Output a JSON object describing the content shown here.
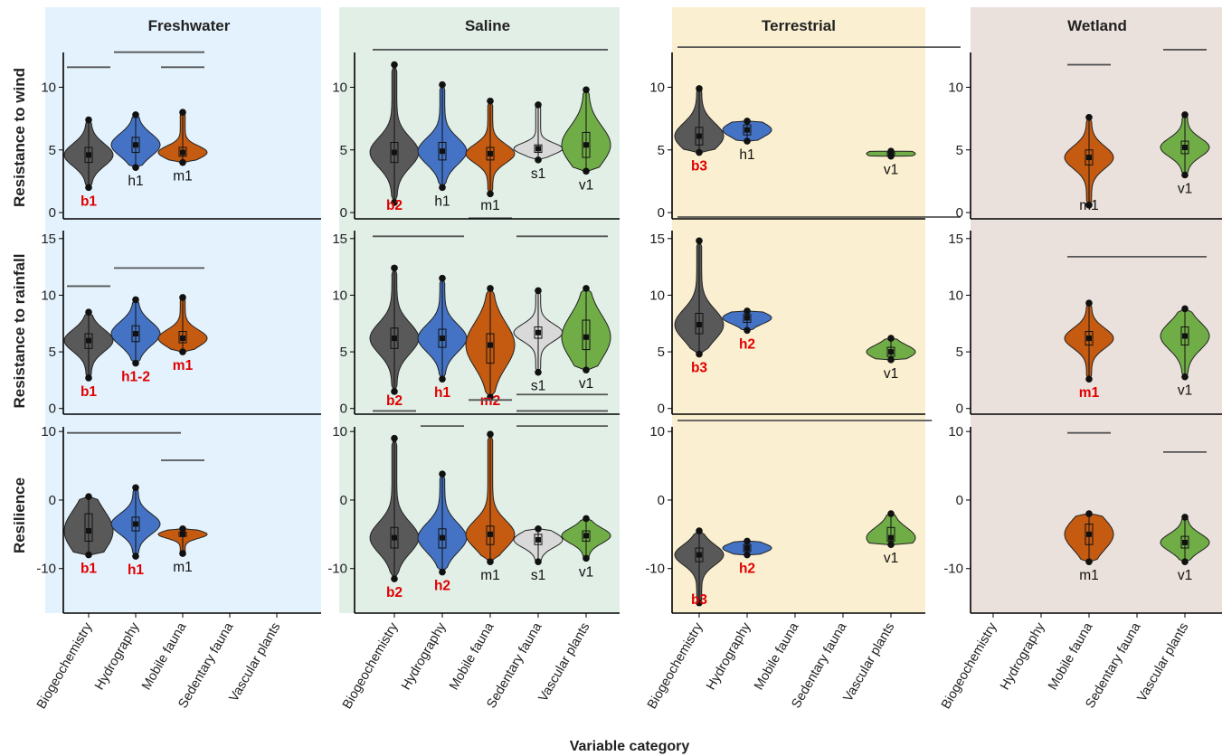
{
  "chart_data": {
    "type": "violin",
    "xlabel": "Variable category",
    "facets": [
      "Freshwater",
      "Saline",
      "Terrestrial",
      "Wetland"
    ],
    "rows": [
      "Resistance to wind",
      "Resistance to rainfall",
      "Resilience"
    ],
    "categories": [
      "Biogeochemistry",
      "Hydrography",
      "Mobile fauna",
      "Sedentary fauna",
      "Vascular plants"
    ],
    "category_colors": {
      "Biogeochemistry": "#595959",
      "Hydrography": "#4472c4",
      "Mobile fauna": "#c55a11",
      "Sedentary fauna": "#d9d9d9",
      "Vascular plants": "#70ad47"
    },
    "facet_backgrounds": {
      "Freshwater": "#e3f2fc",
      "Saline": "#e1efe7",
      "Terrestrial": "#fbefd1",
      "Wetland": "#ebe1dc"
    },
    "y_ranges": {
      "Resistance to wind": [
        -0.5,
        13.5
      ],
      "Resistance to rainfall": [
        -0.5,
        16.5
      ],
      "Resilience": [
        -16.5,
        12
      ]
    },
    "y_ticks": {
      "Resistance to wind": [
        0,
        5,
        10
      ],
      "Resistance to rainfall": [
        0,
        5,
        10,
        15
      ],
      "Resilience": [
        -10,
        0,
        10
      ]
    },
    "label_colors": {
      "significant": "#e00000",
      "normal": "#111111"
    },
    "panels": [
      {
        "facet": "Freshwater",
        "row": "Resistance to wind",
        "groups": [
          {
            "category": "Biogeochemistry",
            "min": 2.0,
            "q1": 4.0,
            "median": 4.6,
            "q3": 5.2,
            "max": 7.4,
            "label": "b1",
            "significant": true
          },
          {
            "category": "Hydrography",
            "min": 3.6,
            "q1": 4.8,
            "median": 5.4,
            "q3": 6.0,
            "max": 7.8,
            "label": "h1",
            "significant": false
          },
          {
            "category": "Mobile fauna",
            "min": 4.0,
            "q1": 4.5,
            "median": 4.8,
            "q3": 5.2,
            "max": 8.0,
            "label": "m1",
            "significant": false
          }
        ],
        "sig_lines": [
          {
            "y": 11.6,
            "from": 0,
            "to": 0
          },
          {
            "y": 12.8,
            "from": 1,
            "to": 2
          },
          {
            "y": 11.6,
            "from": 2,
            "to": 2
          }
        ]
      },
      {
        "facet": "Saline",
        "row": "Resistance to wind",
        "groups": [
          {
            "category": "Biogeochemistry",
            "min": 0.8,
            "q1": 4.0,
            "median": 4.8,
            "q3": 5.6,
            "max": 11.8,
            "label": "b2",
            "significant": true
          },
          {
            "category": "Hydrography",
            "min": 2.0,
            "q1": 4.2,
            "median": 4.9,
            "q3": 5.6,
            "max": 10.2,
            "label": "h1",
            "significant": false
          },
          {
            "category": "Mobile fauna",
            "min": 1.5,
            "q1": 4.2,
            "median": 4.7,
            "q3": 5.2,
            "max": 8.9,
            "label": "m1",
            "significant": false
          },
          {
            "category": "Sedentary fauna",
            "min": 4.2,
            "q1": 4.8,
            "median": 5.1,
            "q3": 5.4,
            "max": 8.6,
            "label": "s1",
            "significant": false
          },
          {
            "category": "Vascular plants",
            "min": 3.3,
            "q1": 4.4,
            "median": 5.4,
            "q3": 6.4,
            "max": 9.8,
            "label": "v1",
            "significant": false
          }
        ],
        "sig_lines": [
          {
            "y": 13.0,
            "from": 0,
            "to": 4
          }
        ]
      },
      {
        "facet": "Terrestrial",
        "row": "Resistance to wind",
        "groups": [
          {
            "category": "Biogeochemistry",
            "min": 4.8,
            "q1": 5.4,
            "median": 6.1,
            "q3": 6.8,
            "max": 9.9,
            "label": "b3",
            "significant": true
          },
          {
            "category": "Hydrography",
            "min": 5.7,
            "q1": 6.2,
            "median": 6.6,
            "q3": 7.0,
            "max": 7.3,
            "label": "h1",
            "significant": false
          },
          {
            "category": "Vascular plants",
            "min": 4.5,
            "q1": 4.6,
            "median": 4.7,
            "q3": 4.8,
            "max": 4.9,
            "label": "v1",
            "significant": false
          }
        ],
        "sig_lines": [
          {
            "y": 13.2,
            "from": 0,
            "to": 5
          }
        ]
      },
      {
        "facet": "Wetland",
        "row": "Resistance to wind",
        "groups": [
          {
            "category": "Mobile fauna",
            "min": 0.6,
            "q1": 3.8,
            "median": 4.4,
            "q3": 5.0,
            "max": 7.6,
            "label": "m1",
            "significant": false
          },
          {
            "category": "Vascular plants",
            "min": 3.0,
            "q1": 4.7,
            "median": 5.2,
            "q3": 5.7,
            "max": 7.8,
            "label": "v1",
            "significant": false
          }
        ],
        "sig_lines": [
          {
            "y": 11.8,
            "from": 2,
            "to": 2
          },
          {
            "y": 13.0,
            "from": 4,
            "to": 4
          }
        ]
      },
      {
        "facet": "Freshwater",
        "row": "Resistance to rainfall",
        "groups": [
          {
            "category": "Biogeochemistry",
            "min": 2.7,
            "q1": 5.3,
            "median": 6.0,
            "q3": 6.6,
            "max": 8.5,
            "label": "b1",
            "significant": true
          },
          {
            "category": "Hydrography",
            "min": 4.0,
            "q1": 5.9,
            "median": 6.6,
            "q3": 7.3,
            "max": 9.6,
            "label": "h1-2",
            "significant": true
          },
          {
            "category": "Mobile fauna",
            "min": 5.0,
            "q1": 5.8,
            "median": 6.2,
            "q3": 6.8,
            "max": 9.8,
            "label": "m1",
            "significant": true
          }
        ],
        "sig_lines": [
          {
            "y": 10.8,
            "from": 0,
            "to": 0
          },
          {
            "y": 12.4,
            "from": 1,
            "to": 2
          }
        ]
      },
      {
        "facet": "Saline",
        "row": "Resistance to rainfall",
        "groups": [
          {
            "category": "Biogeochemistry",
            "min": 1.5,
            "q1": 5.3,
            "median": 6.2,
            "q3": 7.1,
            "max": 12.4,
            "label": "b2",
            "significant": true
          },
          {
            "category": "Hydrography",
            "min": 2.6,
            "q1": 5.4,
            "median": 6.2,
            "q3": 7.0,
            "max": 11.5,
            "label": "h1",
            "significant": true
          },
          {
            "category": "Mobile fauna",
            "min": 1.0,
            "q1": 4.0,
            "median": 5.6,
            "q3": 6.6,
            "max": 10.6,
            "label": "m2",
            "significant": true
          },
          {
            "category": "Sedentary fauna",
            "min": 3.2,
            "q1": 6.2,
            "median": 6.7,
            "q3": 7.2,
            "max": 10.4,
            "label": "s1",
            "significant": false
          },
          {
            "category": "Vascular plants",
            "min": 3.4,
            "q1": 5.2,
            "median": 6.3,
            "q3": 7.8,
            "max": 10.6,
            "label": "v1",
            "significant": false
          }
        ],
        "sig_lines": [
          {
            "y": 15.2,
            "from": 0,
            "to": 1
          },
          {
            "y": 16.8,
            "from": 2,
            "to": 2
          },
          {
            "y": 15.2,
            "from": 3,
            "to": 4
          }
        ]
      },
      {
        "facet": "Terrestrial",
        "row": "Resistance to rainfall",
        "groups": [
          {
            "category": "Biogeochemistry",
            "min": 4.8,
            "q1": 6.6,
            "median": 7.4,
            "q3": 8.4,
            "max": 14.8,
            "label": "b3",
            "significant": true
          },
          {
            "category": "Hydrography",
            "min": 6.9,
            "q1": 7.6,
            "median": 8.0,
            "q3": 8.3,
            "max": 8.6,
            "label": "h2",
            "significant": true
          },
          {
            "category": "Vascular plants",
            "min": 4.3,
            "q1": 4.6,
            "median": 5.0,
            "q3": 5.4,
            "max": 6.2,
            "label": "v1",
            "significant": false
          }
        ],
        "sig_lines": [
          {
            "y": 16.9,
            "from": 0,
            "to": 5
          }
        ]
      },
      {
        "facet": "Wetland",
        "row": "Resistance to rainfall",
        "groups": [
          {
            "category": "Mobile fauna",
            "min": 2.6,
            "q1": 5.6,
            "median": 6.2,
            "q3": 6.8,
            "max": 9.3,
            "label": "m1",
            "significant": true
          },
          {
            "category": "Vascular plants",
            "min": 2.8,
            "q1": 5.6,
            "median": 6.4,
            "q3": 7.2,
            "max": 8.8,
            "label": "v1",
            "significant": false
          }
        ],
        "sig_lines": [
          {
            "y": 13.4,
            "from": 2,
            "to": 4
          }
        ]
      },
      {
        "facet": "Freshwater",
        "row": "Resilience",
        "groups": [
          {
            "category": "Biogeochemistry",
            "min": -8.0,
            "q1": -6.0,
            "median": -4.5,
            "q3": -2.0,
            "max": 0.5,
            "label": "b1",
            "significant": true
          },
          {
            "category": "Hydrography",
            "min": -8.2,
            "q1": -4.5,
            "median": -3.5,
            "q3": -2.5,
            "max": 1.8,
            "label": "h1",
            "significant": true
          },
          {
            "category": "Mobile fauna",
            "min": -7.8,
            "q1": -5.3,
            "median": -5.0,
            "q3": -4.7,
            "max": -4.2,
            "label": "m1",
            "significant": false
          }
        ],
        "sig_lines": [
          {
            "y": 9.8,
            "from": 0,
            "to": 1.5
          },
          {
            "y": 5.8,
            "from": 2,
            "to": 2
          }
        ]
      },
      {
        "facet": "Saline",
        "row": "Resilience",
        "groups": [
          {
            "category": "Biogeochemistry",
            "min": -11.5,
            "q1": -7.0,
            "median": -5.5,
            "q3": -4.0,
            "max": 9.0,
            "label": "b2",
            "significant": true
          },
          {
            "category": "Hydrography",
            "min": -10.5,
            "q1": -7.0,
            "median": -5.5,
            "q3": -4.2,
            "max": 3.8,
            "label": "h2",
            "significant": true
          },
          {
            "category": "Mobile fauna",
            "min": -9.0,
            "q1": -6.5,
            "median": -5.0,
            "q3": -3.8,
            "max": 9.6,
            "label": "m1",
            "significant": false
          },
          {
            "category": "Sedentary fauna",
            "min": -9.0,
            "q1": -6.5,
            "median": -5.8,
            "q3": -5.0,
            "max": -4.2,
            "label": "s1",
            "significant": false
          },
          {
            "category": "Vascular plants",
            "min": -8.5,
            "q1": -6.0,
            "median": -5.2,
            "q3": -4.5,
            "max": -2.7,
            "label": "v1",
            "significant": false
          }
        ],
        "sig_lines": [
          {
            "y": 13.0,
            "from": 0,
            "to": 0
          },
          {
            "y": 10.8,
            "from": 1,
            "to": 1
          },
          {
            "y": 14.6,
            "from": 2,
            "to": 2
          },
          {
            "y": 15.4,
            "from": 3,
            "to": 4
          },
          {
            "y": 13.0,
            "from": 3,
            "to": 4
          },
          {
            "y": 10.8,
            "from": 3,
            "to": 4
          }
        ]
      },
      {
        "facet": "Terrestrial",
        "row": "Resilience",
        "groups": [
          {
            "category": "Biogeochemistry",
            "min": -15.0,
            "q1": -9.0,
            "median": -8.0,
            "q3": -7.0,
            "max": -4.5,
            "label": "b3",
            "significant": true
          },
          {
            "category": "Hydrography",
            "min": -8.0,
            "q1": -7.5,
            "median": -7.0,
            "q3": -6.5,
            "max": -6.0,
            "label": "h2",
            "significant": true
          },
          {
            "category": "Vascular plants",
            "min": -6.5,
            "q1": -6.0,
            "median": -5.5,
            "q3": -4.0,
            "max": -2.0,
            "label": "v1",
            "significant": false
          }
        ],
        "sig_lines": [
          {
            "y": 11.6,
            "from": 0,
            "to": 4.4
          }
        ]
      },
      {
        "facet": "Wetland",
        "row": "Resilience",
        "groups": [
          {
            "category": "Mobile fauna",
            "min": -9.0,
            "q1": -6.5,
            "median": -5.0,
            "q3": -3.5,
            "max": -2.0,
            "label": "m1",
            "significant": false
          },
          {
            "category": "Vascular plants",
            "min": -9.0,
            "q1": -7.0,
            "median": -6.2,
            "q3": -5.3,
            "max": -2.5,
            "label": "v1",
            "significant": false
          }
        ],
        "sig_lines": [
          {
            "y": 9.8,
            "from": 2,
            "to": 2
          },
          {
            "y": 7.0,
            "from": 4,
            "to": 4
          }
        ]
      }
    ]
  }
}
